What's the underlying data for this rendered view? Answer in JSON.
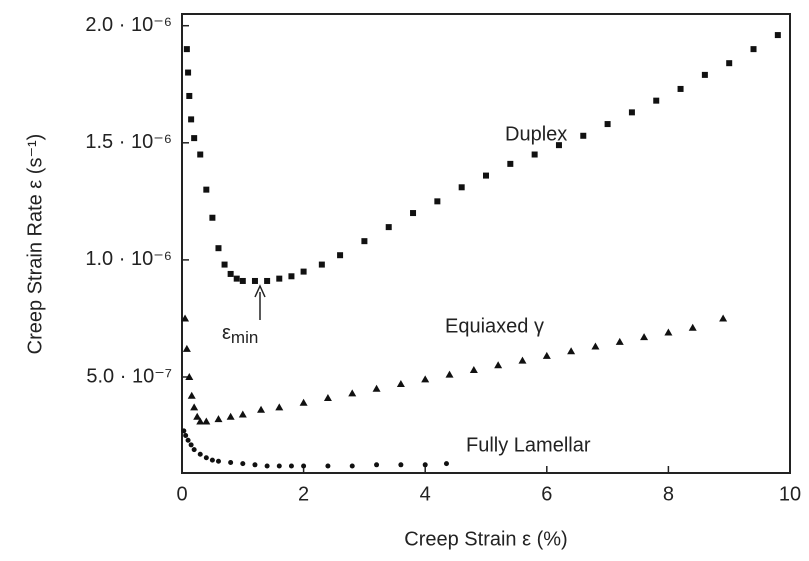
{
  "chart_data": {
    "type": "scatter",
    "x_label": "Creep Strain ε (%)",
    "y_label": "Creep Strain Rate ε (s⁻¹)",
    "xlim": [
      0,
      10
    ],
    "ylim": [
      9e-08,
      2.05e-06
    ],
    "xticks": [
      0,
      2,
      4,
      6,
      8,
      10
    ],
    "yticks": [
      {
        "value": 5e-07,
        "label": "5.0 · 10⁻⁷"
      },
      {
        "value": 1e-06,
        "label": "1.0 · 10⁻⁶"
      },
      {
        "value": 1.5e-06,
        "label": "1.5 · 10⁻⁶"
      },
      {
        "value": 2e-06,
        "label": "2.0 · 10⁻⁶"
      }
    ],
    "annotation": {
      "symbol": "ε",
      "subscript": "min"
    },
    "series": [
      {
        "name": "Duplex",
        "color": "#111111",
        "marker": "square",
        "x": [
          0.08,
          0.1,
          0.12,
          0.15,
          0.2,
          0.3,
          0.4,
          0.5,
          0.6,
          0.7,
          0.8,
          0.9,
          1.0,
          1.2,
          1.4,
          1.6,
          1.8,
          2.0,
          2.3,
          2.6,
          3.0,
          3.4,
          3.8,
          4.2,
          4.6,
          5.0,
          5.4,
          5.8,
          6.2,
          6.6,
          7.0,
          7.4,
          7.8,
          8.2,
          8.6,
          9.0,
          9.4,
          9.8
        ],
        "values": [
          1.9e-06,
          1.8e-06,
          1.7e-06,
          1.6e-06,
          1.52e-06,
          1.45e-06,
          1.3e-06,
          1.18e-06,
          1.05e-06,
          9.8e-07,
          9.4e-07,
          9.2e-07,
          9.1e-07,
          9.1e-07,
          9.1e-07,
          9.2e-07,
          9.3e-07,
          9.5e-07,
          9.8e-07,
          1.02e-06,
          1.08e-06,
          1.14e-06,
          1.2e-06,
          1.25e-06,
          1.31e-06,
          1.36e-06,
          1.41e-06,
          1.45e-06,
          1.49e-06,
          1.53e-06,
          1.58e-06,
          1.63e-06,
          1.68e-06,
          1.73e-06,
          1.79e-06,
          1.84e-06,
          1.9e-06,
          1.96e-06
        ]
      },
      {
        "name": "Equiaxed γ",
        "color": "#111111",
        "marker": "triangle",
        "x": [
          0.05,
          0.08,
          0.12,
          0.16,
          0.2,
          0.25,
          0.3,
          0.4,
          0.6,
          0.8,
          1.0,
          1.3,
          1.6,
          2.0,
          2.4,
          2.8,
          3.2,
          3.6,
          4.0,
          4.4,
          4.8,
          5.2,
          5.6,
          6.0,
          6.4,
          6.8,
          7.2,
          7.6,
          8.0,
          8.4,
          8.9
        ],
        "values": [
          7.5e-07,
          6.2e-07,
          5e-07,
          4.2e-07,
          3.7e-07,
          3.3e-07,
          3.1e-07,
          3.1e-07,
          3.2e-07,
          3.3e-07,
          3.4e-07,
          3.6e-07,
          3.7e-07,
          3.9e-07,
          4.1e-07,
          4.3e-07,
          4.5e-07,
          4.7e-07,
          4.9e-07,
          5.1e-07,
          5.3e-07,
          5.5e-07,
          5.7e-07,
          5.9e-07,
          6.1e-07,
          6.3e-07,
          6.5e-07,
          6.7e-07,
          6.9e-07,
          7.1e-07,
          7.5e-07
        ]
      },
      {
        "name": "Fully Lamellar",
        "color": "#111111",
        "marker": "dot",
        "x": [
          0.03,
          0.06,
          0.1,
          0.15,
          0.2,
          0.3,
          0.4,
          0.5,
          0.6,
          0.8,
          1.0,
          1.2,
          1.4,
          1.6,
          1.8,
          2.0,
          2.4,
          2.8,
          3.2,
          3.6,
          4.0,
          4.35
        ],
        "values": [
          2.7e-07,
          2.5e-07,
          2.3e-07,
          2.1e-07,
          1.9e-07,
          1.7e-07,
          1.55e-07,
          1.45e-07,
          1.4e-07,
          1.35e-07,
          1.3e-07,
          1.25e-07,
          1.2e-07,
          1.2e-07,
          1.2e-07,
          1.2e-07,
          1.2e-07,
          1.2e-07,
          1.25e-07,
          1.25e-07,
          1.25e-07,
          1.3e-07
        ]
      }
    ]
  }
}
